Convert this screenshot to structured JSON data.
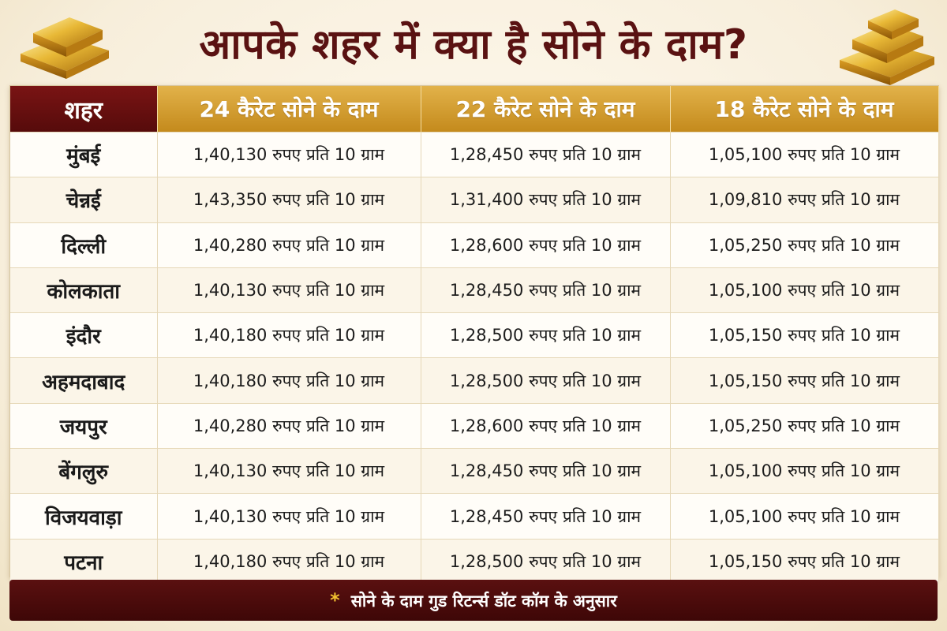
{
  "title": "आपके शहर में क्या है सोने के दाम?",
  "colors": {
    "accent_red": "#5a1212",
    "accent_gold": "#d39d2e"
  },
  "icons": {
    "left": "gold-bars-icon",
    "right": "gold-bars-icon"
  },
  "table": {
    "headers": [
      "शहर",
      "24 कैरेट सोने के दाम",
      "22 कैरेट सोने के दाम",
      "18 कैरेट सोने के दाम"
    ],
    "rows": [
      {
        "city": "मुंबई",
        "k24": "1,40,130 रुपए प्रति 10 ग्राम",
        "k22": "1,28,450 रुपए प्रति 10 ग्राम",
        "k18": "1,05,100 रुपए प्रति 10 ग्राम"
      },
      {
        "city": "चेन्नई",
        "k24": "1,43,350 रुपए प्रति 10 ग्राम",
        "k22": "1,31,400 रुपए प्रति 10 ग्राम",
        "k18": "1,09,810 रुपए प्रति 10 ग्राम"
      },
      {
        "city": "दिल्ली",
        "k24": "1,40,280 रुपए प्रति 10 ग्राम",
        "k22": "1,28,600 रुपए प्रति 10 ग्राम",
        "k18": "1,05,250 रुपए प्रति 10 ग्राम"
      },
      {
        "city": "कोलकाता",
        "k24": "1,40,130 रुपए प्रति 10 ग्राम",
        "k22": "1,28,450 रुपए प्रति 10 ग्राम",
        "k18": "1,05,100 रुपए प्रति 10 ग्राम"
      },
      {
        "city": "इंदौर",
        "k24": "1,40,180 रुपए प्रति 10 ग्राम",
        "k22": "1,28,500 रुपए प्रति 10 ग्राम",
        "k18": "1,05,150 रुपए प्रति 10 ग्राम"
      },
      {
        "city": "अहमदाबाद",
        "k24": "1,40,180 रुपए प्रति 10 ग्राम",
        "k22": "1,28,500 रुपए प्रति 10 ग्राम",
        "k18": "1,05,150 रुपए प्रति 10 ग्राम"
      },
      {
        "city": "जयपुर",
        "k24": "1,40,280 रुपए प्रति 10 ग्राम",
        "k22": "1,28,600 रुपए प्रति 10 ग्राम",
        "k18": "1,05,250 रुपए प्रति 10 ग्राम"
      },
      {
        "city": "बेंगलुरु",
        "k24": "1,40,130 रुपए प्रति 10 ग्राम",
        "k22": "1,28,450 रुपए प्रति 10 ग्राम",
        "k18": "1,05,100 रुपए प्रति 10 ग्राम"
      },
      {
        "city": "विजयवाड़ा",
        "k24": "1,40,130 रुपए प्रति 10 ग्राम",
        "k22": "1,28,450 रुपए प्रति 10 ग्राम",
        "k18": "1,05,100 रुपए प्रति 10 ग्राम"
      },
      {
        "city": "पटना",
        "k24": "1,40,180 रुपए प्रति 10 ग्राम",
        "k22": "1,28,500 रुपए प्रति 10 ग्राम",
        "k18": "1,05,150 रुपए प्रति 10 ग्राम"
      }
    ]
  },
  "footer": {
    "star": "*",
    "note": "सोने के दाम गुड रिटर्न्स डॉट कॉम के अनुसार"
  }
}
